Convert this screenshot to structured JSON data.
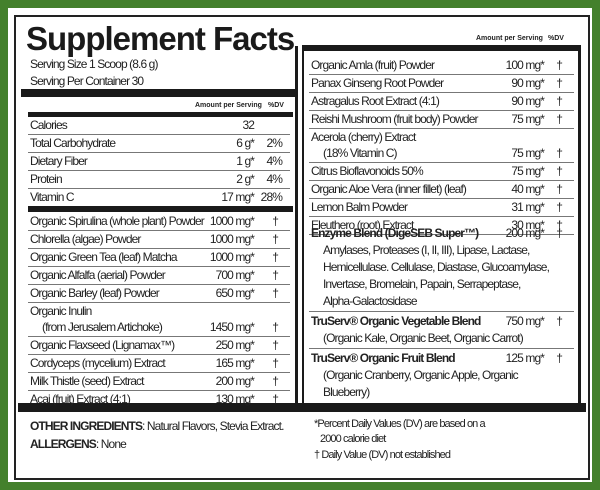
{
  "title": "Supplement Facts",
  "serving_size": "Serving Size 1 Scoop (8.6 g)",
  "servings_per_container": "Serving Per Container 30",
  "header": {
    "amount": "Amount per Serving",
    "dv": "%DV"
  },
  "colors": {
    "border": "#44802c",
    "rule": "#1a1a1a"
  },
  "nutrients": [
    {
      "name": "Calories",
      "amount": "32",
      "dv": ""
    },
    {
      "name": "Total Carbohydrate",
      "amount": "6 g*",
      "dv": "2%"
    },
    {
      "name": "Dietary Fiber",
      "amount": "1 g*",
      "dv": "4%"
    },
    {
      "name": "Protein",
      "amount": "2 g*",
      "dv": "4%"
    },
    {
      "name": "Vitamin C",
      "amount": "17 mg*",
      "dv": "28%"
    }
  ],
  "left_ingredients": [
    {
      "name": "Organic Spirulina (whole plant) Powder",
      "amount": "1000 mg*",
      "dv": "†"
    },
    {
      "name": "Chlorella (algae) Powder",
      "amount": "1000 mg*",
      "dv": "†"
    },
    {
      "name": "Organic Green Tea (leaf) Matcha",
      "amount": "1000 mg*",
      "dv": "†"
    },
    {
      "name": "Organic Alfalfa (aerial) Powder",
      "amount": "700 mg*",
      "dv": "†"
    },
    {
      "name": "Organic Barley (leaf) Powder",
      "amount": "650 mg*",
      "dv": "†"
    },
    {
      "name": "Organic Inulin",
      "name2": "(from Jerusalem Artichoke)",
      "amount": "1450 mg*",
      "dv": "†"
    },
    {
      "name": "Organic Flaxseed (Lignamax™)",
      "amount": "250 mg*",
      "dv": "†"
    },
    {
      "name": "Cordyceps (mycelium) Extract",
      "amount": "165 mg*",
      "dv": "†"
    },
    {
      "name": "Milk Thistle (seed) Extract",
      "amount": "200 mg*",
      "dv": "†"
    },
    {
      "name": "Acai (fruit) Extract (4:1)",
      "amount": "130 mg*",
      "dv": "†"
    }
  ],
  "right_ingredients": [
    {
      "name": "Organic Amla (fruit) Powder",
      "amount": "100 mg*",
      "dv": "†"
    },
    {
      "name": "Panax Ginseng Root Powder",
      "amount": "90 mg*",
      "dv": "†"
    },
    {
      "name": "Astragalus Root Extract (4:1)",
      "amount": "90 mg*",
      "dv": "†"
    },
    {
      "name": "Reishi Mushroom (fruit body) Powder",
      "amount": "75 mg*",
      "dv": "†"
    },
    {
      "name": "Acerola (cherry) Extract",
      "name2": "(18% Vitamin C)",
      "amount": "75 mg*",
      "dv": "†"
    },
    {
      "name": "Citrus Bioflavonoids 50%",
      "amount": "75 mg*",
      "dv": "†"
    },
    {
      "name": "Organic Aloe Vera (inner fillet) (leaf)",
      "amount": "40 mg*",
      "dv": "†"
    },
    {
      "name": "Lemon Balm Powder",
      "amount": "31 mg*",
      "dv": "†"
    },
    {
      "name": "Eleuthero (root) Extract",
      "amount": "30 mg*",
      "dv": "†"
    }
  ],
  "blends": [
    {
      "name": "Enzyme Blend (DigeSEB Super™)",
      "amount": "200 mg*",
      "dv": "†",
      "lines": [
        "Amylases, Proteases (I, II, III), Lipase, Lactase,",
        "Hemicellulase. Cellulase, Diastase, Glucoamylase,",
        "Invertase, Bromelain, Papain, Serrapeptase,",
        "Alpha-Galactosidase"
      ]
    },
    {
      "name": "TruServ® Organic Vegetable Blend",
      "amount": "750 mg*",
      "dv": "†",
      "lines": [
        "(Organic Kale, Organic Beet, Organic Carrot)"
      ]
    },
    {
      "name": "TruServ® Organic Fruit Blend",
      "amount": "125 mg*",
      "dv": "†",
      "lines": [
        "(Organic Cranberry, Organic Apple, Organic",
        "Blueberry)"
      ]
    }
  ],
  "footer": {
    "other_label": "OTHER INGREDIENTS",
    "other_value": ": Natural Flavors, Stevia Extract.",
    "allergens_label": "ALLERGENS",
    "allergens_value": ": None",
    "note1": "*Percent Daily Values (DV) are based on a",
    "note1b": "2000 calorie diet",
    "note2": "† Daily Value (DV) not established"
  }
}
